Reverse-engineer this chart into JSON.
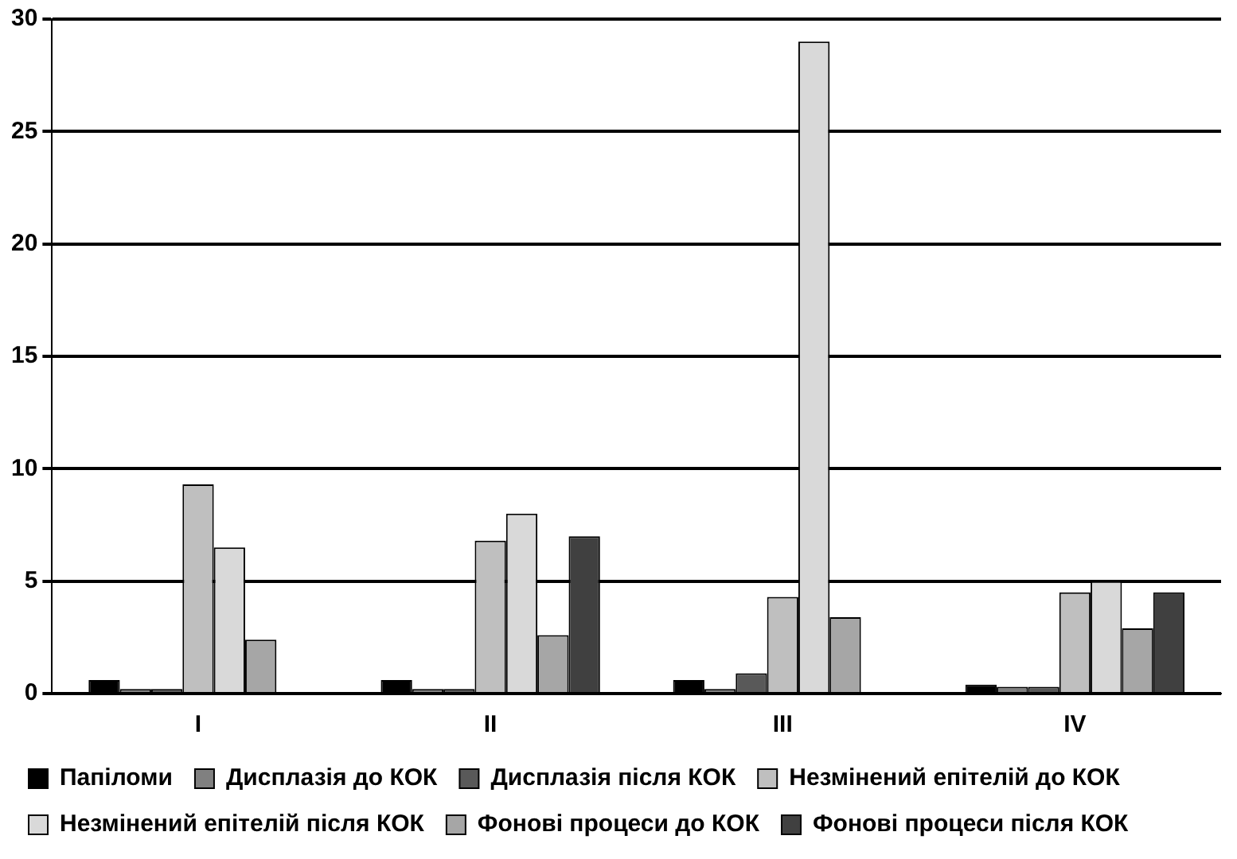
{
  "chart_data": {
    "type": "bar",
    "categories": [
      "I",
      "II",
      "III",
      "IV"
    ],
    "series": [
      {
        "name": "Папіломи",
        "color": "#000000",
        "values": [
          0.6,
          0.6,
          0.6,
          0.4
        ]
      },
      {
        "name": "Дисплазія до КОК",
        "color": "#808080",
        "values": [
          0.2,
          0.2,
          0.2,
          0.3
        ]
      },
      {
        "name": "Дисплазія після КОК",
        "color": "#595959",
        "values": [
          0.2,
          0.2,
          0.9,
          0.3
        ]
      },
      {
        "name": "Незмінений епітелій до КОК",
        "color": "#bfbfbf",
        "values": [
          9.3,
          6.8,
          4.3,
          4.5
        ]
      },
      {
        "name": "Незмінений епітелій після КОК",
        "color": "#d9d9d9",
        "values": [
          6.5,
          8.0,
          29,
          5.0
        ]
      },
      {
        "name": "Фонові процеси до КОК",
        "color": "#a6a6a6",
        "values": [
          2.4,
          2.6,
          3.4,
          2.9
        ]
      },
      {
        "name": "Фонові процеси після КОК",
        "color": "#404040",
        "values": [
          null,
          7.0,
          null,
          4.5
        ]
      }
    ],
    "ylim": [
      0,
      30
    ],
    "yticks": [
      0,
      5,
      10,
      15,
      20,
      25,
      30
    ],
    "grid": "y",
    "legend": "bottom"
  }
}
